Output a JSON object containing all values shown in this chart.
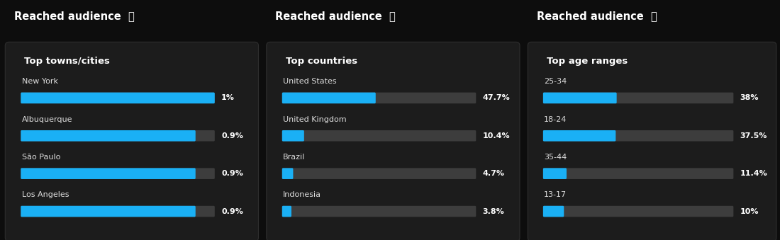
{
  "bg_color": "#0d0d0d",
  "card_color": "#1c1c1c",
  "bar_bg_color": "#3d3d3d",
  "bar_fg_color": "#1ab0f5",
  "text_color": "#ffffff",
  "label_color": "#dddddd",
  "title": "Reached audience",
  "panels": [
    {
      "subtitle": "Top towns/cities",
      "items": [
        {
          "label": "New York",
          "value": 1.0,
          "display": "1%",
          "max": 1.0
        },
        {
          "label": "Albuquerque",
          "value": 0.9,
          "display": "0.9%",
          "max": 1.0
        },
        {
          "label": "São Paulo",
          "value": 0.9,
          "display": "0.9%",
          "max": 1.0
        },
        {
          "label": "Los Angeles",
          "value": 0.9,
          "display": "0.9%",
          "max": 1.0
        }
      ]
    },
    {
      "subtitle": "Top countries",
      "items": [
        {
          "label": "United States",
          "value": 47.7,
          "display": "47.7%",
          "max": 100.0
        },
        {
          "label": "United Kingdom",
          "value": 10.4,
          "display": "10.4%",
          "max": 100.0
        },
        {
          "label": "Brazil",
          "value": 4.7,
          "display": "4.7%",
          "max": 100.0
        },
        {
          "label": "Indonesia",
          "value": 3.8,
          "display": "3.8%",
          "max": 100.0
        }
      ]
    },
    {
      "subtitle": "Top age ranges",
      "items": [
        {
          "label": "25-34",
          "value": 38.0,
          "display": "38%",
          "max": 100.0
        },
        {
          "label": "18-24",
          "value": 37.5,
          "display": "37.5%",
          "max": 100.0
        },
        {
          "label": "35-44",
          "value": 11.4,
          "display": "11.4%",
          "max": 100.0
        },
        {
          "label": "13-17",
          "value": 10.0,
          "display": "10%",
          "max": 100.0
        }
      ]
    }
  ]
}
